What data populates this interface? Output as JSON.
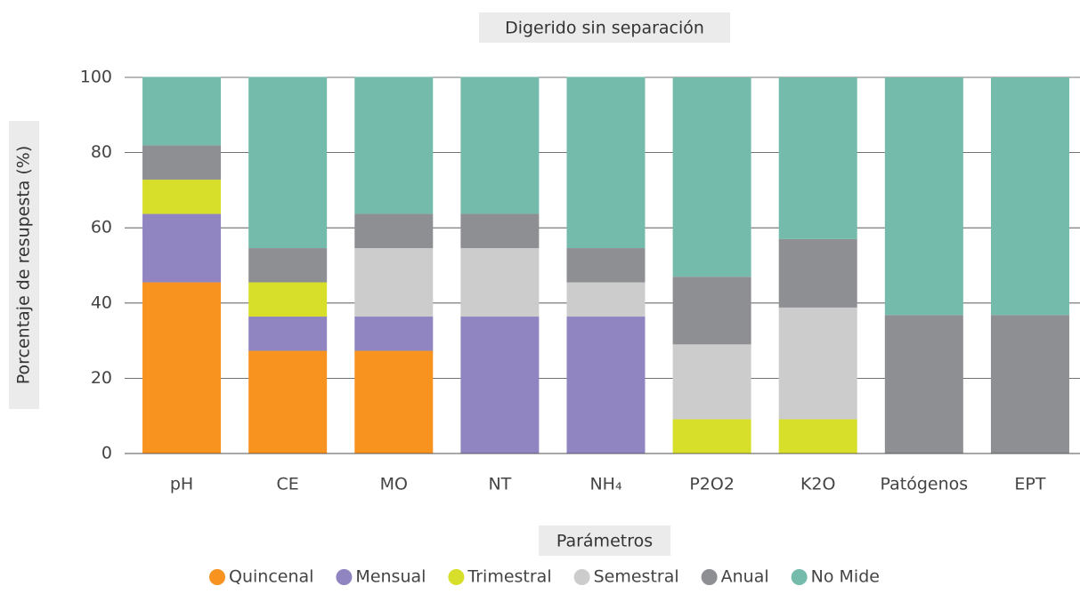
{
  "chart_data": {
    "type": "stacked_bar",
    "title": "Digerido sin separación",
    "x_label": "Parámetros",
    "y_label": "Porcentaje de resupesta (%)",
    "categories": [
      "pH",
      "CE",
      "MO",
      "NT",
      "NH₄",
      "P2O2",
      "K2O",
      "Patógenos",
      "EPT"
    ],
    "series": [
      {
        "name": "Quincenal",
        "color": "#f7931e",
        "values": [
          45.5,
          27.3,
          27.3,
          0,
          0,
          0,
          0,
          0,
          0
        ]
      },
      {
        "name": "Mensual",
        "color": "#9085c0",
        "values": [
          18.2,
          9.1,
          9.1,
          36.4,
          36.4,
          0,
          0,
          0,
          0
        ]
      },
      {
        "name": "Trimestral",
        "color": "#d7df2a",
        "values": [
          9.1,
          9.1,
          0,
          0,
          0,
          9.1,
          9.1,
          0,
          0
        ]
      },
      {
        "name": "Semestral",
        "color": "#cccccc",
        "values": [
          0,
          0,
          18.2,
          18.2,
          9.1,
          19.9,
          29.7,
          0,
          0
        ]
      },
      {
        "name": "Anual",
        "color": "#8e8f93",
        "values": [
          9.1,
          9.1,
          9.1,
          9.1,
          9.1,
          18.0,
          18.2,
          36.8,
          36.8
        ]
      },
      {
        "name": "No Mide",
        "color": "#74bbac",
        "values": [
          18.2,
          45.5,
          36.4,
          36.4,
          45.5,
          53.0,
          43.0,
          63.2,
          63.2
        ]
      }
    ],
    "ylim": [
      0,
      100
    ],
    "yticks": [
      0,
      20,
      40,
      60,
      80,
      100
    ],
    "grid": true,
    "legend": "bottom"
  }
}
